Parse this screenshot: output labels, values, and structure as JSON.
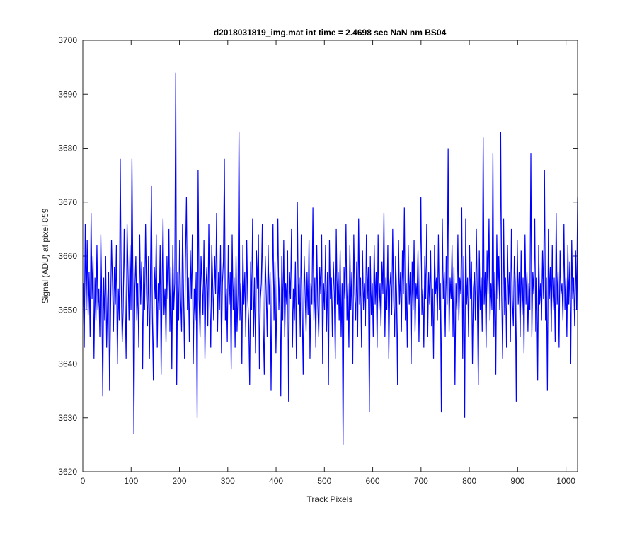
{
  "chart_data": {
    "type": "line",
    "title": "d2018031819_img.mat int time = 2.4698 sec  NaN nm BS04",
    "xlabel": "Track Pixels",
    "ylabel": "Signal (ADU) at pixel 859",
    "xlim": [
      0,
      1024
    ],
    "ylim": [
      3620,
      3700
    ],
    "xticks": [
      0,
      100,
      200,
      300,
      400,
      500,
      600,
      700,
      800,
      900,
      1000
    ],
    "yticks": [
      3620,
      3630,
      3640,
      3650,
      3660,
      3670,
      3680,
      3690,
      3700
    ],
    "grid": false,
    "legend": "none",
    "series": [
      {
        "color": "#0000ff",
        "x_start": 1,
        "x_step": 1,
        "values": [
          3655,
          3643,
          3666,
          3650,
          3663,
          3649,
          3657,
          3645,
          3668,
          3652,
          3660,
          3641,
          3656,
          3648,
          3662,
          3650,
          3654,
          3645,
          3664,
          3652,
          3634,
          3656,
          3648,
          3660,
          3643,
          3652,
          3657,
          3635,
          3649,
          3663,
          3655,
          3646,
          3658,
          3651,
          3662,
          3640,
          3654,
          3648,
          3678,
          3655,
          3644,
          3650,
          3665,
          3652,
          3641,
          3666,
          3657,
          3648,
          3662,
          3650,
          3678,
          3656,
          3627,
          3654,
          3660,
          3648,
          3655,
          3643,
          3664,
          3651,
          3659,
          3639,
          3658,
          3650,
          3666,
          3653,
          3647,
          3660,
          3641,
          3656,
          3673,
          3649,
          3637,
          3658,
          3652,
          3664,
          3643,
          3655,
          3650,
          3662,
          3638,
          3655,
          3667,
          3649,
          3654,
          3644,
          3660,
          3652,
          3665,
          3646,
          3658,
          3639,
          3662,
          3650,
          3655,
          3694,
          3636,
          3657,
          3648,
          3663,
          3652,
          3646,
          3666,
          3654,
          3641,
          3659,
          3671,
          3650,
          3656,
          3644,
          3661,
          3652,
          3664,
          3640,
          3654,
          3648,
          3657,
          3630,
          3676,
          3652,
          3645,
          3660,
          3655,
          3649,
          3663,
          3641,
          3654,
          3658,
          3647,
          3666,
          3651,
          3643,
          3662,
          3655,
          3648,
          3660,
          3653,
          3668,
          3646,
          3657,
          3650,
          3662,
          3642,
          3655,
          3659,
          3678,
          3648,
          3654,
          3644,
          3662,
          3651,
          3657,
          3639,
          3664,
          3650,
          3656,
          3643,
          3660,
          3646,
          3653,
          3683,
          3648,
          3655,
          3640,
          3662,
          3651,
          3657,
          3645,
          3663,
          3652,
          3648,
          3636,
          3659,
          3650,
          3667,
          3645,
          3656,
          3642,
          3661,
          3654,
          3664,
          3639,
          3652,
          3655,
          3666,
          3647,
          3638,
          3660,
          3653,
          3645,
          3662,
          3651,
          3657,
          3635,
          3654,
          3666,
          3648,
          3659,
          3642,
          3653,
          3667,
          3650,
          3656,
          3634,
          3660,
          3648,
          3663,
          3645,
          3655,
          3651,
          3661,
          3633,
          3657,
          3652,
          3665,
          3643,
          3654,
          3648,
          3659,
          3641,
          3670,
          3651,
          3656,
          3645,
          3664,
          3650,
          3638,
          3660,
          3653,
          3646,
          3657,
          3649,
          3663,
          3641,
          3655,
          3651,
          3669,
          3648,
          3656,
          3643,
          3662,
          3651,
          3645,
          3658,
          3653,
          3664,
          3640,
          3655,
          3650,
          3662,
          3646,
          3657,
          3636,
          3663,
          3652,
          3656,
          3645,
          3659,
          3653,
          3641,
          3665,
          3651,
          3657,
          3648,
          3661,
          3645,
          3655,
          3625,
          3658,
          3652,
          3666,
          3648,
          3655,
          3643,
          3662,
          3650,
          3657,
          3640,
          3664,
          3653,
          3648,
          3659,
          3645,
          3667,
          3651,
          3656,
          3643,
          3661,
          3650,
          3655,
          3647,
          3664,
          3652,
          3658,
          3631,
          3660,
          3649,
          3655,
          3645,
          3662,
          3651,
          3657,
          3643,
          3664,
          3650,
          3655,
          3647,
          3659,
          3653,
          3668,
          3645,
          3656,
          3650,
          3662,
          3641,
          3654,
          3657,
          3649,
          3665,
          3652,
          3645,
          3660,
          3653,
          3636,
          3663,
          3651,
          3657,
          3646,
          3661,
          3653,
          3669,
          3648,
          3655,
          3643,
          3662,
          3651,
          3657,
          3640,
          3659,
          3650,
          3663,
          3646,
          3655,
          3652,
          3661,
          3644,
          3656,
          3671,
          3649,
          3654,
          3643,
          3660,
          3652,
          3666,
          3645,
          3657,
          3651,
          3661,
          3647,
          3654,
          3641,
          3662,
          3653,
          3656,
          3648,
          3664,
          3650,
          3655,
          3631,
          3667,
          3652,
          3657,
          3645,
          3660,
          3651,
          3680,
          3646,
          3656,
          3652,
          3662,
          3645,
          3658,
          3636,
          3655,
          3650,
          3664,
          3648,
          3656,
          3653,
          3669,
          3641,
          3660,
          3630,
          3667,
          3651,
          3656,
          3645,
          3662,
          3652,
          3659,
          3640,
          3654,
          3657,
          3648,
          3665,
          3652,
          3636,
          3661,
          3650,
          3656,
          3646,
          3682,
          3651,
          3657,
          3643,
          3661,
          3653,
          3667,
          3648,
          3655,
          3650,
          3679,
          3645,
          3657,
          3638,
          3664,
          3652,
          3660,
          3650,
          3683,
          3653,
          3641,
          3667,
          3649,
          3656,
          3643,
          3662,
          3651,
          3657,
          3644,
          3665,
          3652,
          3647,
          3660,
          3655,
          3633,
          3663,
          3651,
          3657,
          3645,
          3661,
          3649,
          3656,
          3642,
          3664,
          3651,
          3657,
          3646,
          3655,
          3650,
          3679,
          3645,
          3657,
          3653,
          3667,
          3646,
          3656,
          3637,
          3662,
          3651,
          3655,
          3648,
          3661,
          3652,
          3676,
          3648,
          3656,
          3635,
          3665,
          3652,
          3658,
          3646,
          3662,
          3650,
          3656,
          3644,
          3668,
          3651,
          3657,
          3643,
          3661,
          3653,
          3655,
          3648,
          3666,
          3650,
          3656,
          3645,
          3662,
          3651,
          3659,
          3640,
          3663,
          3652,
          3656,
          3647,
          3661,
          3650,
          3671
        ]
      }
    ]
  }
}
